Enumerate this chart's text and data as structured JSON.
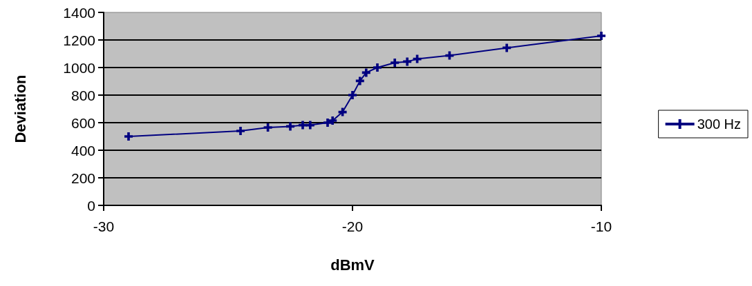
{
  "chart_data": {
    "type": "line",
    "xlabel": "dBmV",
    "ylabel": "Deviation",
    "x": [
      -29,
      -24.5,
      -23.4,
      -22.5,
      -22,
      -21.7,
      -21,
      -20.8,
      -20.4,
      -20,
      -19.7,
      -19.45,
      -19,
      -18.3,
      -17.8,
      -17.4,
      -16.1,
      -13.8,
      -10
    ],
    "series": [
      {
        "name": "300 Hz",
        "color": "#000080",
        "values": [
          500,
          540,
          565,
          573,
          582,
          582,
          600,
          615,
          677,
          800,
          903,
          963,
          1000,
          1035,
          1043,
          1062,
          1087,
          1143,
          1230
        ]
      }
    ],
    "xlim": [
      -30,
      -10
    ],
    "xticks": [
      -30,
      -20,
      -10
    ],
    "ylim": [
      0,
      1400
    ],
    "yticks": [
      0,
      200,
      400,
      600,
      800,
      1000,
      1200,
      1400
    ],
    "grid": "y",
    "legend": "right",
    "marker": "cross",
    "line_style": "solid"
  }
}
